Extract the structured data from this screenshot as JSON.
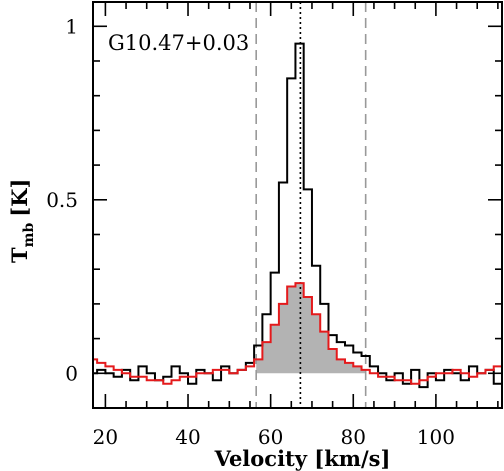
{
  "chart_data": {
    "type": "line",
    "title": "G10.47+0.03",
    "xlabel": "Velocity [km/s]",
    "ylabel_main": "T",
    "ylabel_sub": "mb",
    "ylabel_unit": "[K]",
    "xlim": [
      17,
      116
    ],
    "ylim": [
      -0.1,
      1.07
    ],
    "x_ticks": [
      20,
      40,
      60,
      80,
      100
    ],
    "x_tick_labels": [
      "20",
      "40",
      "60",
      "80",
      "100"
    ],
    "y_ticks": [
      0,
      0.5,
      1
    ],
    "y_tick_labels": [
      "0",
      "0.5",
      "1"
    ],
    "grid": false,
    "legend": "none",
    "vertical_lines": [
      {
        "x": 56.5,
        "style": "dashed",
        "color": "#999999"
      },
      {
        "x": 67.2,
        "style": "dotted",
        "color": "#000000"
      },
      {
        "x": 83,
        "style": "dashed",
        "color": "#999999"
      }
    ],
    "series": [
      {
        "color": "#000000",
        "step": true,
        "x": [
          17,
          19,
          21,
          23,
          25,
          27,
          29,
          31,
          33,
          35,
          37,
          39,
          41,
          43,
          45,
          47,
          49,
          51,
          53,
          55,
          57,
          59,
          61,
          63,
          65,
          67,
          69,
          71,
          73,
          75,
          77,
          79,
          81,
          83,
          85,
          87,
          89,
          91,
          93,
          95,
          97,
          99,
          101,
          103,
          105,
          107,
          109,
          111,
          113,
          115
        ],
        "y": [
          0.0,
          0.01,
          0.0,
          -0.01,
          0.01,
          -0.02,
          0.02,
          0.0,
          -0.02,
          -0.01,
          0.02,
          0.0,
          -0.03,
          0.01,
          0.0,
          -0.02,
          0.02,
          0.0,
          0.01,
          0.03,
          0.08,
          0.17,
          0.29,
          0.55,
          0.85,
          0.95,
          0.53,
          0.31,
          0.2,
          0.11,
          0.09,
          0.08,
          0.06,
          0.05,
          0.02,
          0.0,
          -0.02,
          0.0,
          -0.03,
          0.01,
          -0.04,
          0.0,
          -0.02,
          0.01,
          0.0,
          -0.02,
          0.02,
          0.0,
          0.01,
          -0.03
        ]
      },
      {
        "color": "#e41a1c",
        "step": true,
        "filled": true,
        "fill_color": "#b3b3b3",
        "x": [
          17,
          19,
          21,
          23,
          25,
          27,
          29,
          31,
          33,
          35,
          37,
          39,
          41,
          43,
          45,
          47,
          49,
          51,
          53,
          55,
          57,
          59,
          61,
          63,
          65,
          67,
          69,
          71,
          73,
          75,
          77,
          79,
          81,
          83,
          85,
          87,
          89,
          91,
          93,
          95,
          97,
          99,
          101,
          103,
          105,
          107,
          109,
          111,
          113,
          115
        ],
        "y": [
          0.04,
          0.03,
          0.02,
          0.01,
          0.0,
          -0.01,
          -0.01,
          -0.02,
          -0.02,
          -0.03,
          -0.02,
          -0.01,
          -0.01,
          0.0,
          0.0,
          0.01,
          0.01,
          0.0,
          0.01,
          0.02,
          0.04,
          0.09,
          0.14,
          0.2,
          0.25,
          0.26,
          0.22,
          0.17,
          0.12,
          0.07,
          0.04,
          0.03,
          0.02,
          0.01,
          0.0,
          -0.01,
          -0.01,
          -0.02,
          -0.02,
          -0.03,
          -0.02,
          -0.01,
          0.0,
          0.0,
          0.01,
          0.0,
          -0.01,
          0.0,
          0.01,
          0.02
        ]
      }
    ]
  }
}
